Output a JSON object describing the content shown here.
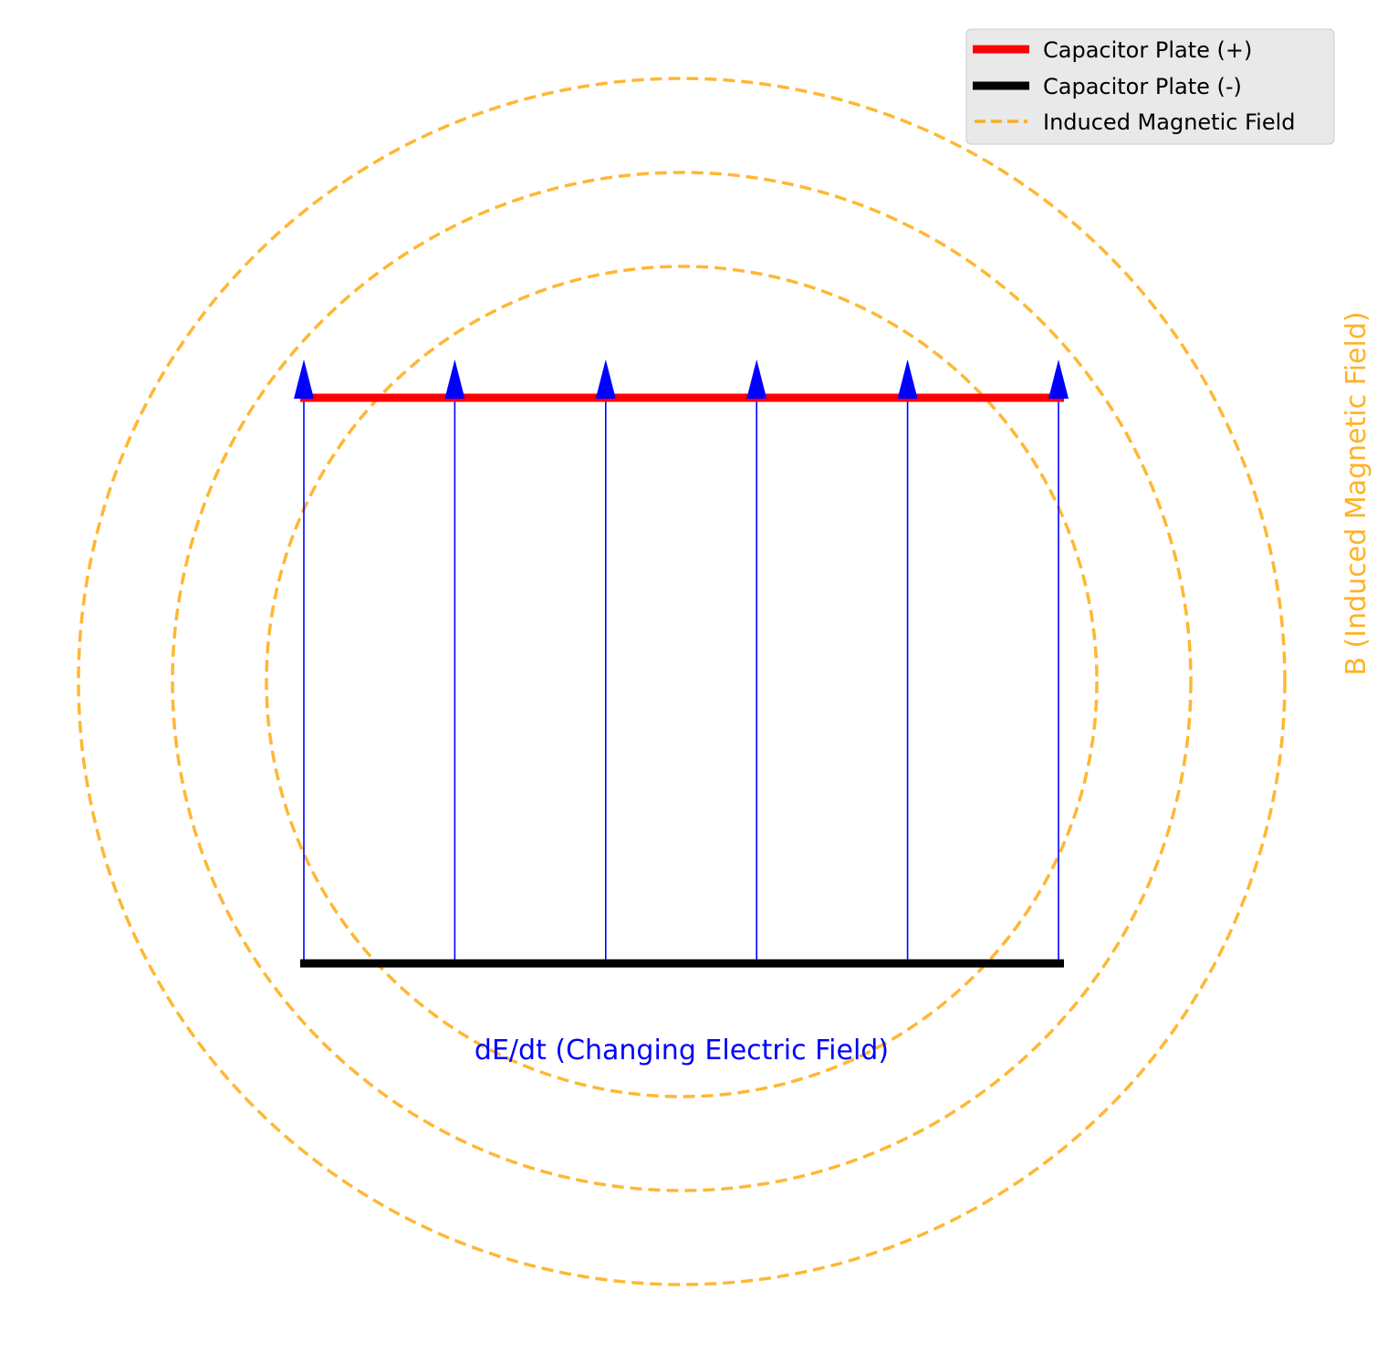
{
  "colors": {
    "positive_plate": "#ff0000",
    "negative_plate": "#000000",
    "electric_field": "#0000ff",
    "magnetic_field": "#ffa500",
    "legend_background": "#e8e8e8",
    "legend_border": "#cccccc"
  },
  "legend": {
    "items": [
      {
        "label": "Capacitor Plate (+)",
        "style": "solid-red"
      },
      {
        "label": "Capacitor Plate (-)",
        "style": "solid-black"
      },
      {
        "label": "Induced Magnetic Field",
        "style": "dashed-orange"
      }
    ]
  },
  "labels": {
    "electric_field": "dE/dt (Changing Electric Field)",
    "magnetic_field": "B (Induced Magnetic Field)"
  },
  "diagram": {
    "field_line_count": 6,
    "field_line_direction": "up",
    "magnetic_loop_count": 3
  }
}
